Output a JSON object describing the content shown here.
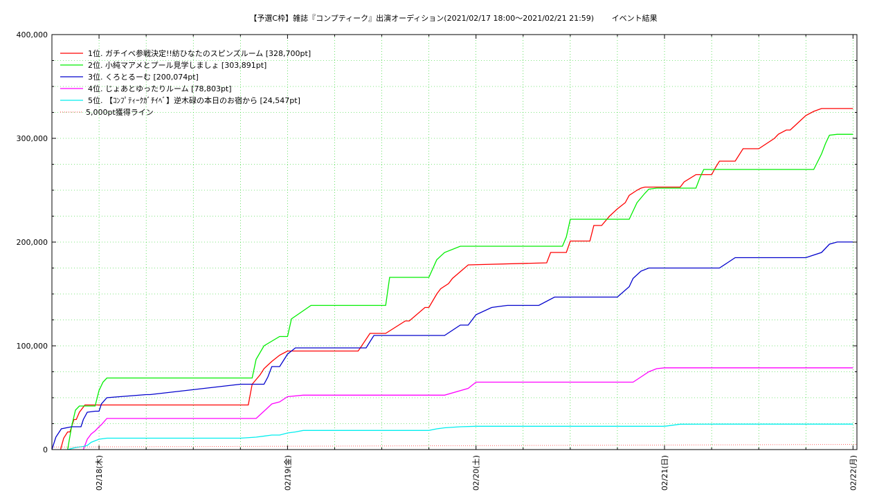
{
  "chart_data": {
    "type": "line",
    "title": "【予選C枠】雑誌『コンプティーク』出演オーディション(2021/02/17 18:00〜2021/02/21 21:59)　　 イベント結果",
    "xlabel": "",
    "ylabel": "",
    "x_unit": "hours since 2021/02/17 18:00",
    "xlim": [
      0,
      102.5
    ],
    "ylim": [
      0,
      400000
    ],
    "yticks": [
      0,
      100000,
      200000,
      300000,
      400000
    ],
    "ytick_labels": [
      "0",
      "100,000",
      "200,000",
      "300,000",
      "400,000"
    ],
    "xticks": [
      6,
      30,
      54,
      78,
      102
    ],
    "xtick_labels": [
      "02/18(木)",
      "02/19(金)",
      "02/20(土)",
      "02/21(日)",
      "02/22(月)"
    ],
    "grid": true,
    "legend_position": "top-left",
    "series": [
      {
        "name": "1位. ガチイベ参戦決定!!紡ひなたのスピンズルーム [328,700pt]",
        "color": "#ff0000",
        "style": "solid",
        "x": [
          1.1,
          1.5,
          2,
          2.3,
          2.8,
          3.1,
          3.5,
          4.2,
          25,
          25.5,
          26.5,
          27,
          28,
          29,
          30,
          33,
          39,
          40.5,
          42.5,
          45,
          45.5,
          47.5,
          48,
          49,
          49.5,
          50.5,
          51,
          53,
          63,
          63.5,
          65.5,
          66,
          68.5,
          69,
          70,
          71,
          72,
          73,
          73.5,
          74.5,
          75,
          75.5,
          76.5,
          77,
          77.5,
          80,
          80.5,
          82,
          84,
          84.5,
          85,
          85.5,
          87,
          88,
          90,
          92,
          92.5,
          93.5,
          94,
          95,
          96,
          97,
          98,
          98.5,
          99,
          99.5,
          100,
          101,
          102
        ],
        "y": [
          0,
          11000,
          17000,
          17000,
          29000,
          29000,
          36000,
          43000,
          43000,
          63000,
          72000,
          78000,
          85000,
          91000,
          95000,
          95000,
          95000,
          112000,
          112000,
          124000,
          124000,
          137000,
          137000,
          150000,
          155000,
          160000,
          165000,
          178000,
          180000,
          190000,
          190000,
          201000,
          201000,
          216000,
          216000,
          225000,
          232000,
          238000,
          245000,
          250000,
          252000,
          253000,
          253000,
          253000,
          253000,
          253000,
          258000,
          265000,
          265000,
          272000,
          278000,
          278000,
          278000,
          290000,
          290000,
          300000,
          304000,
          308000,
          308000,
          315000,
          322000,
          326000,
          328700,
          328700,
          328700,
          328700,
          328700,
          328700,
          328700
        ]
      },
      {
        "name": "2位. 小純マアメとプール見学しましょ [303,891pt]",
        "color": "#00ee00",
        "style": "solid",
        "x": [
          2,
          2.5,
          3,
          3.5,
          5.5,
          6,
          6.5,
          7,
          25,
          25.5,
          26,
          27,
          29,
          30,
          30.5,
          33,
          40,
          42.5,
          43,
          48,
          49,
          50,
          52,
          65,
          65.5,
          66,
          69,
          72,
          73.5,
          74.5,
          75.5,
          76,
          77,
          78,
          82,
          82.5,
          83,
          90,
          97,
          98,
          98.5,
          99,
          100,
          102
        ],
        "y": [
          0,
          22000,
          38000,
          42000,
          42000,
          57000,
          65000,
          69000,
          69000,
          69000,
          87000,
          100000,
          109000,
          109000,
          126000,
          139000,
          139000,
          139000,
          166000,
          166000,
          183000,
          190000,
          196000,
          196000,
          205000,
          222000,
          222000,
          222000,
          222000,
          238000,
          247000,
          251000,
          252000,
          252000,
          252000,
          262000,
          270000,
          270000,
          270000,
          285000,
          295000,
          303000,
          303891,
          303891
        ]
      },
      {
        "name": "3位. くろとるーむ [200,074pt]",
        "color": "#0000cc",
        "style": "solid",
        "x": [
          0,
          0.5,
          1.2,
          2.5,
          3.7,
          4,
          4.5,
          5.5,
          6,
          6.3,
          7,
          12,
          12.5,
          24,
          25,
          26,
          27,
          27.5,
          28,
          29,
          30,
          31,
          40,
          40.5,
          41,
          48,
          49,
          50,
          52,
          53,
          54,
          56,
          58,
          61,
          62,
          64,
          72,
          73.5,
          74,
          75,
          76,
          77,
          78,
          80,
          80.5,
          82,
          85,
          86,
          87,
          89,
          90,
          92,
          94,
          95,
          96,
          98,
          99,
          100,
          102
        ],
        "y": [
          0,
          12000,
          20000,
          22000,
          22000,
          29000,
          36000,
          37000,
          37000,
          44000,
          50000,
          53000,
          53000,
          63000,
          63000,
          63000,
          63000,
          70000,
          80000,
          80000,
          92000,
          98000,
          98000,
          104000,
          110000,
          110000,
          110000,
          110000,
          120000,
          120000,
          130000,
          137000,
          139000,
          139000,
          139000,
          147000,
          147000,
          157000,
          165000,
          172000,
          175000,
          175000,
          175000,
          175000,
          175000,
          175000,
          175000,
          180000,
          185000,
          185000,
          185000,
          185000,
          185000,
          185000,
          185000,
          190000,
          198000,
          200074,
          200074
        ]
      },
      {
        "name": "4位. じょあとゆったりルーム [78,803pt]",
        "color": "#ff00ff",
        "style": "solid",
        "x": [
          4,
          4.5,
          5,
          5.5,
          6,
          6.3,
          7,
          8,
          24,
          25,
          26,
          27,
          28,
          29,
          30,
          32,
          40,
          44,
          48,
          50,
          53,
          54,
          56,
          60,
          66,
          68,
          70,
          72,
          74,
          75,
          76,
          77,
          78,
          79,
          80,
          82,
          85,
          90,
          95,
          100,
          102
        ],
        "y": [
          0,
          10000,
          15000,
          18000,
          22000,
          24000,
          30000,
          30000,
          30000,
          30000,
          30000,
          37000,
          44000,
          46000,
          51000,
          52500,
          52500,
          52500,
          52500,
          52500,
          59000,
          65000,
          65000,
          65000,
          65000,
          65000,
          65000,
          65000,
          65000,
          70000,
          75000,
          78000,
          78800,
          78800,
          78803,
          78803,
          78803,
          78803,
          78803,
          78803,
          78803
        ]
      },
      {
        "name": "5位. 【ｺﾝﾌﾟﾃｨｰｸｶﾞﾁｲﾍﾞ】逆木碌の本日のお宿から [24,547pt]",
        "color": "#00eeee",
        "style": "solid",
        "x": [
          2,
          3,
          4,
          4.5,
          5,
          6,
          7,
          8,
          12,
          24,
          26,
          28,
          29,
          30,
          31,
          32,
          40,
          48,
          49,
          50,
          52,
          54,
          60,
          66,
          70,
          72,
          74,
          76,
          78,
          80,
          85,
          90,
          95,
          100,
          102
        ],
        "y": [
          0,
          2000,
          3000,
          4000,
          7000,
          10000,
          11000,
          11000,
          11000,
          11000,
          12000,
          14000,
          14000,
          16000,
          17000,
          18500,
          18500,
          18500,
          20000,
          21000,
          22000,
          22500,
          22500,
          22500,
          22500,
          22500,
          22500,
          22500,
          22500,
          24500,
          24547,
          24547,
          24547,
          24547,
          24547
        ]
      },
      {
        "name": "5,000pt獲得ライン",
        "color": "#ff6060",
        "style": "dotted",
        "x": [
          0,
          102.5
        ],
        "y": [
          2500,
          5000
        ]
      }
    ]
  }
}
